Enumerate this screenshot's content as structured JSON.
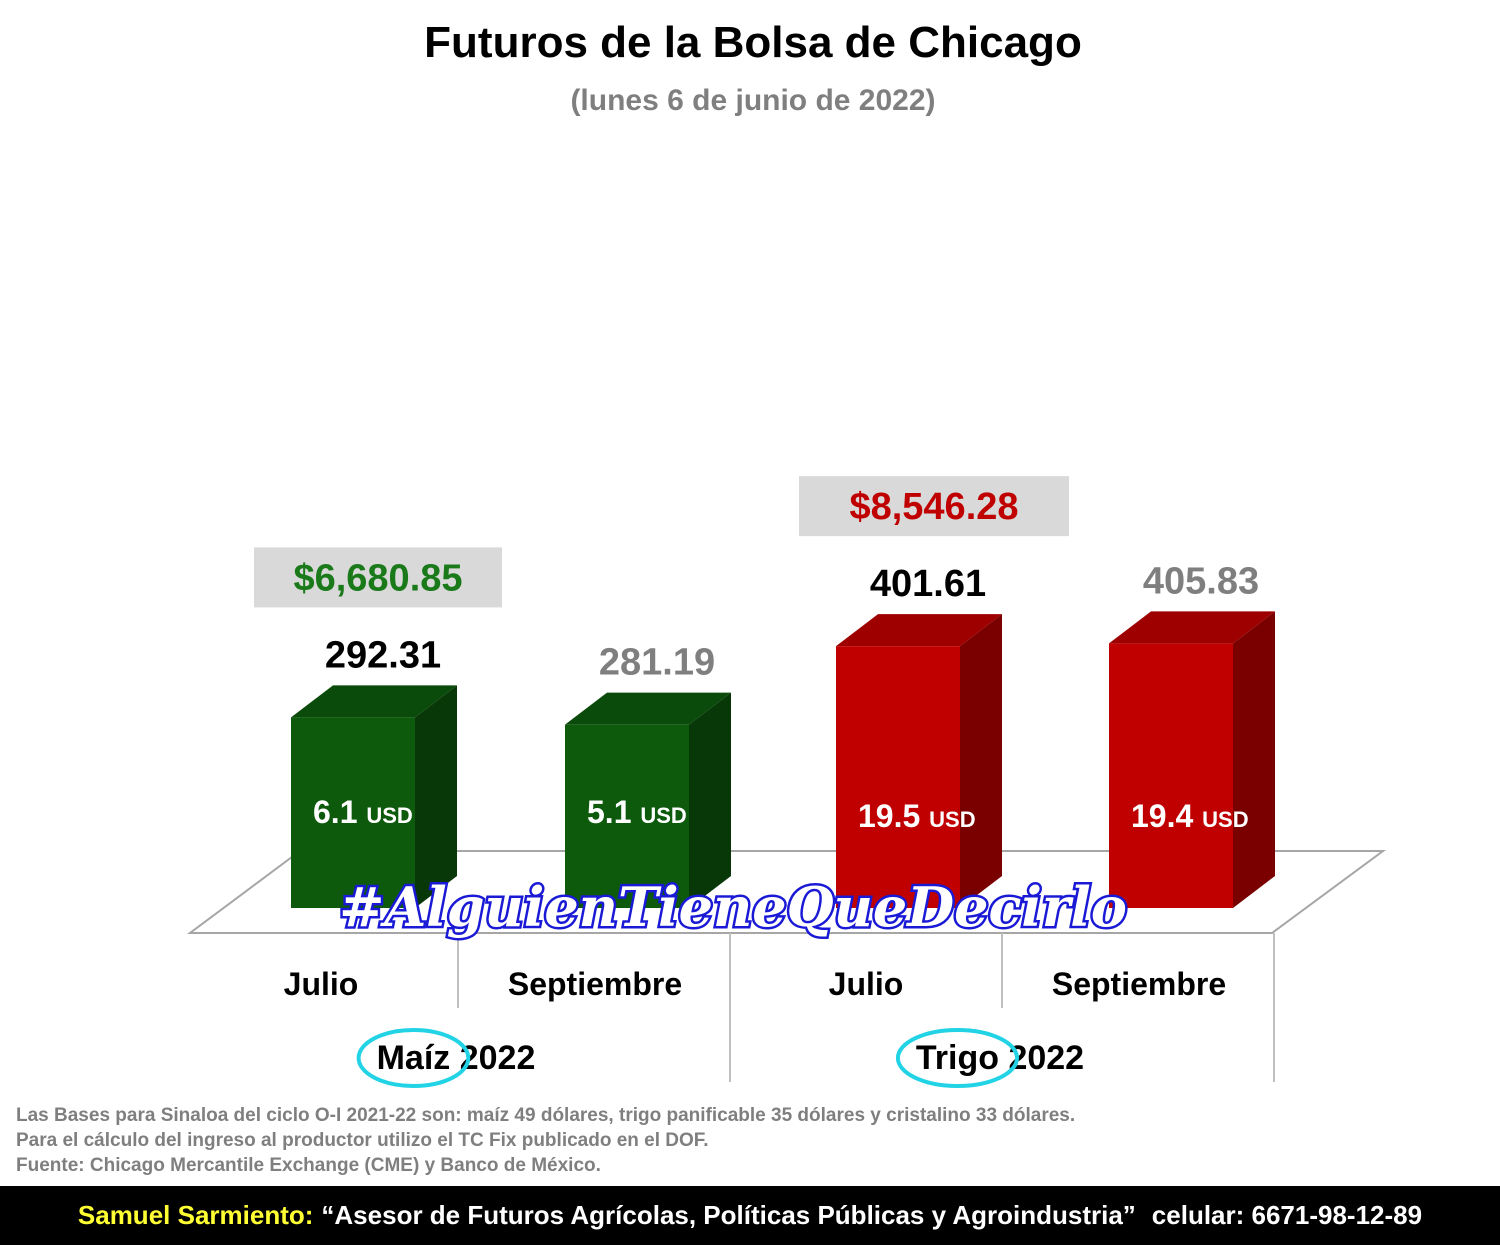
{
  "colors": {
    "corn_front": "#0d5a0d",
    "corn_top": "#0a4a0a",
    "corn_side": "#083808",
    "wheat_front": "#c00000",
    "wheat_top": "#9e0000",
    "wheat_side": "#7a0000",
    "price_green": "#1a7a1a",
    "price_red": "#c00000",
    "gray_text": "#7f7f7f",
    "highlight_circle": "#22d3e6",
    "price_box": "#d9d9d9"
  },
  "chart_data": {
    "type": "bar",
    "title": "Futuros de la Bolsa de Chicago",
    "subtitle": "(lunes 6 de junio de 2022)",
    "groups": [
      {
        "name": "Maíz",
        "year": "2022",
        "price_label": "$6,680.85",
        "bars": [
          {
            "category": "Julio",
            "value": 292.31,
            "value_label": "292.31",
            "change": "6.1",
            "unit": "USD"
          },
          {
            "category": "Septiembre",
            "value": 281.19,
            "value_label": "281.19",
            "change": "5.1",
            "unit": "USD"
          }
        ]
      },
      {
        "name": "Trigo",
        "year": "2022",
        "price_label": "$8,546.28",
        "bars": [
          {
            "category": "Julio",
            "value": 401.61,
            "value_label": "401.61",
            "change": "19.5",
            "unit": "USD"
          },
          {
            "category": "Septiembre",
            "value": 405.83,
            "value_label": "405.83",
            "change": "19.4",
            "unit": "USD"
          }
        ]
      }
    ],
    "grid": false,
    "legend": "none"
  },
  "watermark": "#AlguienTieneQueDecirlo",
  "notes": [
    "Las Bases para Sinaloa del ciclo O-I 2021-22 son: maíz 49 dólares, trigo panificable 35 dólares y cristalino 33 dólares.",
    "Para el cálculo del ingreso al productor utilizo el TC Fix publicado en el DOF.",
    "Fuente: Chicago Mercantile Exchange (CME) y Banco de México."
  ],
  "footer": {
    "name": "Samuel Sarmiento:",
    "role": "“Asesor de Futuros Agrícolas, Políticas Públicas y Agroindustria”",
    "phone": "celular: 6671-98-12-89"
  }
}
